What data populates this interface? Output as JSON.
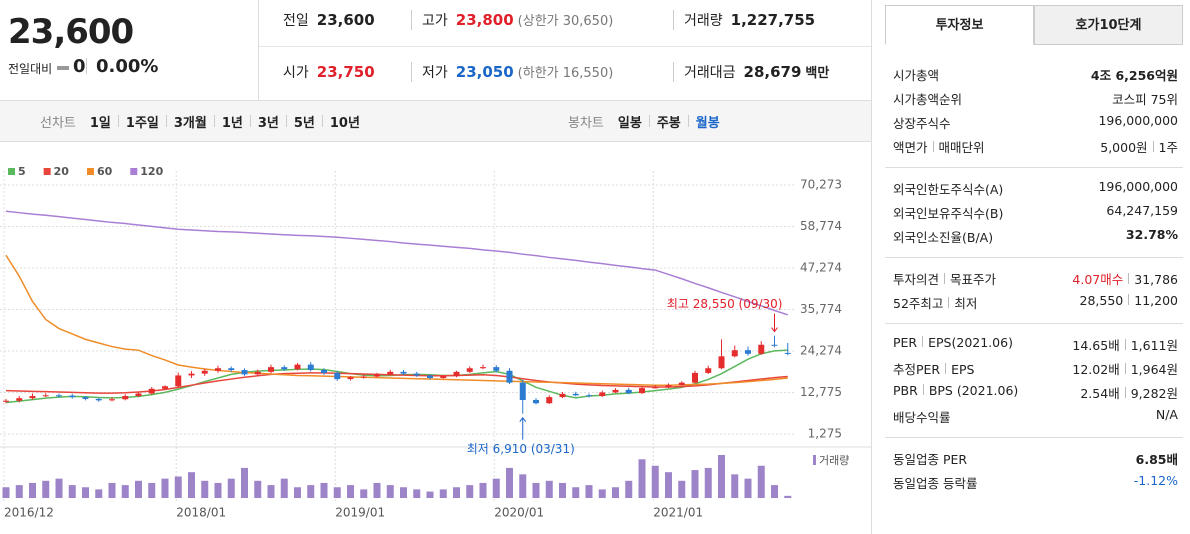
{
  "header": {
    "price": "23,600",
    "change_label": "전일대비",
    "change": "0",
    "change_pct": "0.00%",
    "stats": [
      {
        "label": "전일",
        "value": "23,600",
        "color": "#222"
      },
      {
        "label": "고가",
        "value": "23,800",
        "color": "#e0202a",
        "note": "(상한가 30,650)"
      },
      {
        "label": "거래량",
        "value": "1,227,755",
        "color": "#222"
      },
      {
        "label": "시가",
        "value": "23,750",
        "color": "#e0202a"
      },
      {
        "label": "저가",
        "value": "23,050",
        "color": "#1a66c9",
        "note": "(하한가 16,550)"
      },
      {
        "label": "거래대금",
        "value": "28,679",
        "color": "#222",
        "unit": "백만"
      }
    ]
  },
  "toolbar": {
    "line_label": "선차트",
    "line_options": [
      "1일",
      "1주일",
      "3개월",
      "1년",
      "3년",
      "5년",
      "10년"
    ],
    "candle_label": "봉차트",
    "candle_options": [
      "일봉",
      "주봉",
      "월봉"
    ],
    "active_candle": 2
  },
  "chart_data": {
    "type": "candlestick",
    "categories": [
      "2016/12",
      null,
      null,
      null,
      null,
      null,
      null,
      null,
      null,
      null,
      null,
      null,
      null,
      "2018/01",
      null,
      null,
      null,
      null,
      null,
      null,
      null,
      null,
      null,
      null,
      null,
      "2019/01",
      null,
      null,
      null,
      null,
      null,
      null,
      null,
      null,
      null,
      null,
      null,
      "2020/01",
      null,
      null,
      null,
      null,
      null,
      null,
      null,
      null,
      null,
      null,
      null,
      "2021/01",
      null,
      null,
      null,
      null,
      null,
      null,
      null,
      null,
      null,
      null
    ],
    "open": [
      10200,
      10500,
      11200,
      11800,
      12000,
      11900,
      11500,
      11000,
      10600,
      10900,
      11800,
      12500,
      13800,
      14500,
      17500,
      18000,
      18800,
      19500,
      19000,
      17800,
      18500,
      19800,
      19200,
      20500,
      19000,
      18200,
      16500,
      17000,
      17200,
      17800,
      18500,
      18000,
      17500,
      16800,
      17300,
      18500,
      19500,
      19800,
      18800,
      15500,
      10700,
      9800,
      11500,
      12400,
      12000,
      11800,
      12800,
      13500,
      12600,
      14000,
      14200,
      14800,
      15500,
      18200,
      19500,
      22800,
      24500,
      23500,
      26000,
      23750
    ],
    "high": [
      11000,
      11800,
      12500,
      12600,
      12500,
      12400,
      11800,
      11300,
      11500,
      12300,
      13000,
      14300,
      14800,
      18300,
      18700,
      19400,
      20200,
      20000,
      19500,
      19100,
      20500,
      20300,
      21000,
      21200,
      19500,
      18700,
      17300,
      17700,
      18200,
      19100,
      19000,
      18500,
      17800,
      17600,
      18800,
      20000,
      20500,
      20400,
      19500,
      16200,
      11200,
      12000,
      12900,
      13000,
      12500,
      13300,
      14000,
      14100,
      14500,
      14800,
      15300,
      15900,
      18800,
      20200,
      27500,
      25800,
      25500,
      27000,
      28550,
      26500
    ],
    "low": [
      9800,
      10000,
      10800,
      11500,
      11400,
      11100,
      10600,
      10200,
      10300,
      10600,
      11500,
      12200,
      13500,
      14200,
      16800,
      17400,
      18200,
      18500,
      17400,
      17300,
      18100,
      18800,
      18900,
      18600,
      17700,
      16000,
      16100,
      16600,
      16900,
      17500,
      17600,
      17100,
      16400,
      16600,
      17000,
      18200,
      19200,
      18300,
      15100,
      6910,
      9500,
      9600,
      11200,
      11700,
      11400,
      11500,
      12600,
      12300,
      12400,
      13900,
      14000,
      14600,
      15300,
      17900,
      19200,
      22500,
      23000,
      23200,
      25300,
      23050
    ],
    "close": [
      10500,
      11200,
      11800,
      12000,
      11900,
      11500,
      11000,
      10600,
      10900,
      11800,
      12500,
      13800,
      14500,
      17500,
      18000,
      18800,
      19500,
      19000,
      17800,
      18500,
      19800,
      19200,
      20500,
      19000,
      18200,
      16500,
      17000,
      17200,
      17800,
      18500,
      18000,
      17500,
      16800,
      17300,
      18500,
      19500,
      19800,
      18800,
      15500,
      10700,
      9800,
      11500,
      12400,
      12000,
      11800,
      12800,
      13500,
      12600,
      14000,
      14200,
      14800,
      15500,
      18200,
      19500,
      22800,
      24500,
      23500,
      26000,
      25800,
      23600
    ],
    "up_color": "#e62d2d",
    "down_color": "#2b7bd3",
    "ylim": [
      1275,
      70273
    ],
    "yticks": [
      {
        "value": 1275,
        "label": "1,275"
      },
      {
        "value": 12775,
        "label": "12,775"
      },
      {
        "value": 24274,
        "label": "24,274"
      },
      {
        "value": 35774,
        "label": "35,774"
      },
      {
        "value": 47274,
        "label": "47,274"
      },
      {
        "value": 58774,
        "label": "58,774"
      },
      {
        "value": 70273,
        "label": "70,273"
      }
    ],
    "grid": true,
    "series": [
      {
        "name": "5",
        "color": "#5cb85c",
        "values": [
          10000,
          10400,
          10800,
          11200,
          11500,
          11700,
          11600,
          11400,
          11300,
          11400,
          11700,
          12200,
          12800,
          13700,
          14700,
          15800,
          16800,
          17800,
          18400,
          18700,
          18900,
          19000,
          19200,
          19300,
          19100,
          18600,
          18000,
          17600,
          17400,
          17500,
          17700,
          17800,
          17700,
          17500,
          17500,
          17800,
          18200,
          18600,
          17800,
          16000,
          14200,
          13100,
          12000,
          11300,
          11800,
          12000,
          12400,
          12600,
          12900,
          13300,
          13700,
          14200,
          15200,
          16400,
          18000,
          20000,
          22000,
          23500,
          24300,
          24500
        ]
      },
      {
        "name": "20",
        "color": "#e8453c",
        "values": [
          13300,
          13200,
          13100,
          13000,
          12900,
          12800,
          12700,
          12600,
          12600,
          12700,
          12900,
          13200,
          13600,
          14200,
          14800,
          15400,
          16000,
          16500,
          17000,
          17400,
          17800,
          18000,
          18100,
          18200,
          18200,
          18100,
          18000,
          17900,
          17800,
          17700,
          17600,
          17500,
          17400,
          17400,
          17500,
          17600,
          17700,
          17500,
          17100,
          16600,
          16100,
          15700,
          15400,
          15100,
          14900,
          14700,
          14600,
          14500,
          14400,
          14300,
          14300,
          14400,
          14600,
          14900,
          15300,
          15700,
          16100,
          16500,
          16900,
          17200
        ]
      },
      {
        "name": "60",
        "color": "#f08c28",
        "values": [
          50800,
          45000,
          38000,
          33000,
          30500,
          29000,
          27500,
          26500,
          25500,
          24800,
          24500,
          23000,
          21800,
          20400,
          19800,
          19300,
          18900,
          18600,
          18300,
          18100,
          17900,
          17700,
          17500,
          17400,
          17300,
          17200,
          17100,
          17000,
          16900,
          16800,
          16700,
          16600,
          16500,
          16400,
          16300,
          16200,
          16100,
          16000,
          15900,
          15800,
          15700,
          15600,
          15500,
          15400,
          15300,
          15200,
          15100,
          15000,
          14900,
          14800,
          14800,
          14900,
          15000,
          15100,
          15300,
          15500,
          15800,
          16100,
          16400,
          16800
        ]
      },
      {
        "name": "120",
        "color": "#a97fd6",
        "values": [
          63000,
          62600,
          62200,
          61900,
          61500,
          61100,
          60700,
          60300,
          59900,
          59600,
          59200,
          58800,
          58400,
          58000,
          57800,
          57600,
          57400,
          57300,
          57100,
          56900,
          56700,
          56500,
          56300,
          56200,
          56000,
          55800,
          55500,
          55200,
          54900,
          54600,
          54200,
          53900,
          53600,
          53300,
          53000,
          52700,
          52300,
          52000,
          51600,
          51100,
          50700,
          50200,
          49800,
          49400,
          48900,
          48500,
          48000,
          47600,
          47100,
          46700,
          45500,
          44300,
          43000,
          41800,
          40500,
          39300,
          38000,
          36800,
          35500,
          34300
        ]
      }
    ],
    "volume": {
      "name": "거래량",
      "color": "#9d84c9",
      "values": [
        25,
        30,
        35,
        40,
        45,
        30,
        25,
        20,
        35,
        30,
        40,
        35,
        45,
        50,
        60,
        40,
        35,
        45,
        70,
        40,
        30,
        45,
        25,
        30,
        35,
        25,
        30,
        20,
        35,
        30,
        25,
        20,
        15,
        20,
        25,
        30,
        35,
        45,
        70,
        55,
        35,
        40,
        35,
        25,
        30,
        20,
        25,
        40,
        90,
        75,
        60,
        40,
        65,
        70,
        100,
        55,
        45,
        75,
        30,
        5
      ]
    },
    "volume_lim": [
      0,
      100
    ],
    "annotations": [
      {
        "text": "최고 28,550 (09/30)",
        "color": "#e0202a"
      },
      {
        "text": "최저 6,910 (03/31)",
        "color": "#1a66c9"
      }
    ]
  },
  "panel": {
    "tabs": [
      "투자정보",
      "호가10단계"
    ],
    "active_tab": 0,
    "groups": [
      [
        {
          "label": [
            "시가총액"
          ],
          "value": [
            {
              "text": "4조 6,256억원",
              "bold": true
            }
          ]
        },
        {
          "label": [
            "시가총액순위"
          ],
          "value": [
            {
              "text": "코스피 75위"
            }
          ]
        },
        {
          "label": [
            "상장주식수"
          ],
          "value": [
            {
              "text": "196,000,000"
            }
          ]
        },
        {
          "label": [
            "액면가",
            "매매단위"
          ],
          "value": [
            {
              "text": "5,000원"
            },
            {
              "text": "1주"
            }
          ]
        }
      ],
      [
        {
          "label": [
            "외국인한도주식수(A)"
          ],
          "value": [
            {
              "text": "196,000,000"
            }
          ]
        },
        {
          "label": [
            "외국인보유주식수(B)"
          ],
          "value": [
            {
              "text": "64,247,159"
            }
          ]
        },
        {
          "label": [
            "외국인소진율(B/A)"
          ],
          "value": [
            {
              "text": "32.78%",
              "bold": true
            }
          ]
        }
      ],
      [
        {
          "label": [
            "투자의견",
            "목표주가"
          ],
          "value": [
            {
              "text": "4.07매수",
              "color": "#e0202a"
            },
            {
              "text": "31,786"
            }
          ]
        },
        {
          "label": [
            "52주최고",
            "최저"
          ],
          "value": [
            {
              "text": "28,550"
            },
            {
              "text": "11,200"
            }
          ]
        }
      ],
      [
        {
          "label": [
            "PER",
            "EPS(2021.06)"
          ],
          "value": [
            {
              "text": "14.65배"
            },
            {
              "text": "1,611원"
            }
          ]
        },
        {
          "label": [
            "추정PER",
            "EPS"
          ],
          "value": [
            {
              "text": "12.02배"
            },
            {
              "text": "1,964원"
            }
          ]
        },
        {
          "label": [
            "PBR",
            "BPS (2021.06)"
          ],
          "value": [
            {
              "text": "2.54배"
            },
            {
              "text": "9,282원"
            }
          ]
        },
        {
          "label": [
            "배당수익률"
          ],
          "value": [
            {
              "text": "N/A"
            }
          ]
        }
      ],
      [
        {
          "label": [
            "동일업종 PER"
          ],
          "value": [
            {
              "text": "6.85배",
              "bold": true
            }
          ]
        },
        {
          "label": [
            "동일업종 등락률"
          ],
          "value": [
            {
              "text": "-1.12%",
              "color": "#1a66c9"
            }
          ]
        }
      ]
    ]
  }
}
